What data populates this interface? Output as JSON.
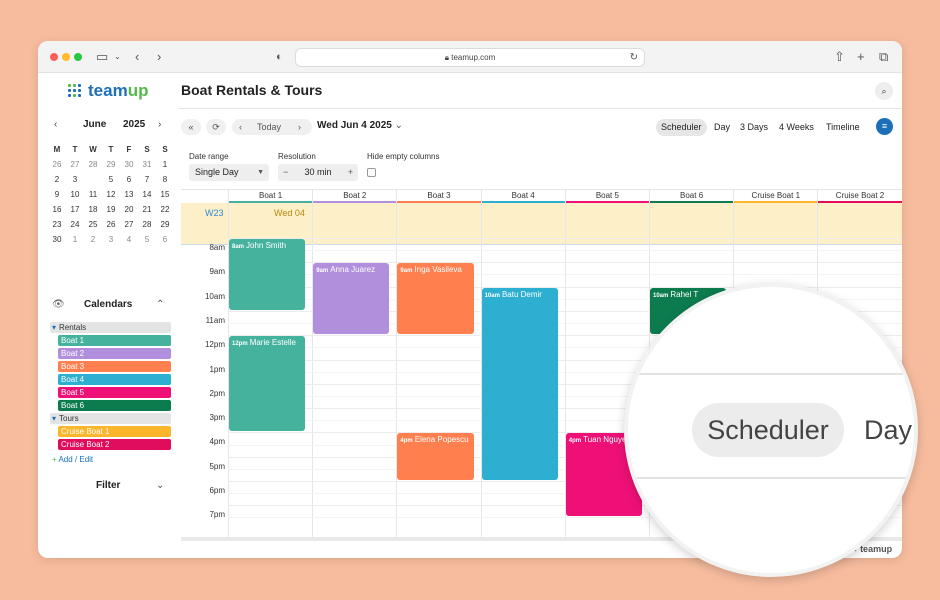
{
  "browser": {
    "url": "teamup.com",
    "colors": {
      "red": "#fe5f57",
      "yellow": "#febc2e",
      "green": "#28c840"
    },
    "icons": [
      "sidebar-icon",
      "chevron-down-icon",
      "back-icon",
      "forward-icon",
      "shield-icon",
      "lock-icon",
      "reload-icon",
      "share-icon",
      "plus-icon",
      "tabs-icon"
    ]
  },
  "app": {
    "logo_a": "team",
    "logo_b": "up",
    "title": "Boat Rentals & Tours",
    "brand": "#1c6fb8"
  },
  "mini_cal": {
    "month": "June",
    "year": "2025",
    "weekdays": [
      "M",
      "T",
      "W",
      "T",
      "F",
      "S",
      "S"
    ],
    "weeks": [
      [
        "26",
        "27",
        "28",
        "29",
        "30",
        "31",
        "1"
      ],
      [
        "2",
        "3",
        "4",
        "5",
        "6",
        "7",
        "8"
      ],
      [
        "9",
        "10",
        "11",
        "12",
        "13",
        "14",
        "15"
      ],
      [
        "16",
        "17",
        "18",
        "19",
        "20",
        "21",
        "22"
      ],
      [
        "23",
        "24",
        "25",
        "26",
        "27",
        "28",
        "29"
      ],
      [
        "30",
        "1",
        "2",
        "3",
        "4",
        "5",
        "6"
      ]
    ],
    "selected": "4"
  },
  "calendars": {
    "label": "Calendars",
    "groups": [
      {
        "name": "Rentals",
        "items": [
          {
            "name": "Boat 1",
            "color": "#45b29d"
          },
          {
            "name": "Boat 2",
            "color": "#b18fdc"
          },
          {
            "name": "Boat 3",
            "color": "#ff7f4f"
          },
          {
            "name": "Boat 4",
            "color": "#2cafd0"
          },
          {
            "name": "Boat 5",
            "color": "#ee1076"
          },
          {
            "name": "Boat 6",
            "color": "#0c7c4f"
          }
        ]
      },
      {
        "name": "Tours",
        "items": [
          {
            "name": "Cruise Boat 1",
            "color": "#fbb62c"
          },
          {
            "name": "Cruise Boat 2",
            "color": "#e00c5c"
          }
        ]
      }
    ],
    "add_edit": "Add / Edit"
  },
  "filter_label": "Filter",
  "toolbar": {
    "today": "Today",
    "date": "Wed Jun 4 2025",
    "views": [
      "Scheduler",
      "Day",
      "3 Days",
      "4 Weeks",
      "Timeline"
    ],
    "active_view": "Scheduler"
  },
  "options": {
    "date_range_label": "Date range",
    "date_range_value": "Single Day",
    "resolution_label": "Resolution",
    "resolution_value": "30 min",
    "hide_empty_label": "Hide empty columns"
  },
  "scheduler": {
    "columns": [
      "Boat 1",
      "Boat 2",
      "Boat 3",
      "Boat 4",
      "Boat 5",
      "Boat 6",
      "Cruise Boat 1",
      "Cruise Boat 2"
    ],
    "week_label": "W23",
    "day_label": "Wed 04",
    "hours": [
      "8am",
      "9am",
      "10am",
      "11am",
      "12pm",
      "1pm",
      "2pm",
      "3pm",
      "4pm",
      "5pm",
      "6pm",
      "7pm"
    ],
    "events": [
      {
        "col": 0,
        "start": 8,
        "end": 11,
        "time": "8am",
        "title": "John Smith"
      },
      {
        "col": 0,
        "start": 12,
        "end": 16,
        "time": "12pm",
        "title": "Marie Estelle"
      },
      {
        "col": 1,
        "start": 9,
        "end": 12,
        "time": "9am",
        "title": "Anna Juarez"
      },
      {
        "col": 2,
        "start": 9,
        "end": 12,
        "time": "9am",
        "title": "Inga Vasileva"
      },
      {
        "col": 2,
        "start": 16,
        "end": 18,
        "time": "4pm",
        "title": "Elena Popescu"
      },
      {
        "col": 3,
        "start": 10,
        "end": 18,
        "time": "10am",
        "title": "Batu Demir"
      },
      {
        "col": 4,
        "start": 16,
        "end": 19.5,
        "time": "4pm",
        "title": "Tuan Nguyen"
      },
      {
        "col": 5,
        "start": 10,
        "end": 12,
        "time": "10am",
        "title": "Rahel T"
      }
    ]
  },
  "watermark": "teamup",
  "zoom": {
    "scheduler": "Scheduler",
    "day": "Day"
  }
}
